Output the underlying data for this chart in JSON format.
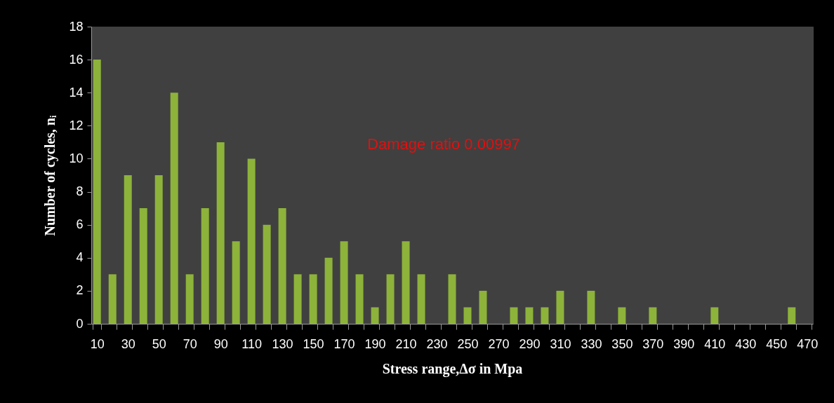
{
  "chart_data": {
    "type": "bar",
    "xlabel": "Stress range,Δσ in Mpa",
    "ylabel": "Number of cycles, nᵢ",
    "categories": [
      "10",
      null,
      "30",
      null,
      "50",
      null,
      "70",
      null,
      "90",
      null,
      "110",
      null,
      "130",
      null,
      "150",
      null,
      "170",
      null,
      "190",
      null,
      "210",
      null,
      "230",
      null,
      "250",
      null,
      "270",
      null,
      "290",
      null,
      "310",
      null,
      "330",
      null,
      "350",
      null,
      "370",
      null,
      "390",
      null,
      "410",
      null,
      "430",
      null,
      "450",
      null,
      "470"
    ],
    "values": [
      16,
      3,
      9,
      7,
      9,
      14,
      3,
      7,
      11,
      5,
      10,
      6,
      7,
      3,
      3,
      4,
      5,
      3,
      1,
      3,
      5,
      3,
      0,
      3,
      1,
      2,
      0,
      1,
      1,
      1,
      2,
      0,
      2,
      0,
      1,
      0,
      1,
      0,
      0,
      0,
      1,
      0,
      0,
      0,
      0,
      1,
      0
    ],
    "color": "#8db33a",
    "ylim": [
      0,
      18
    ],
    "yticks": [
      0,
      2,
      4,
      6,
      8,
      10,
      12,
      14,
      16,
      18
    ],
    "grid": false,
    "annotations": [
      "Damage ratio 0.00997"
    ]
  }
}
